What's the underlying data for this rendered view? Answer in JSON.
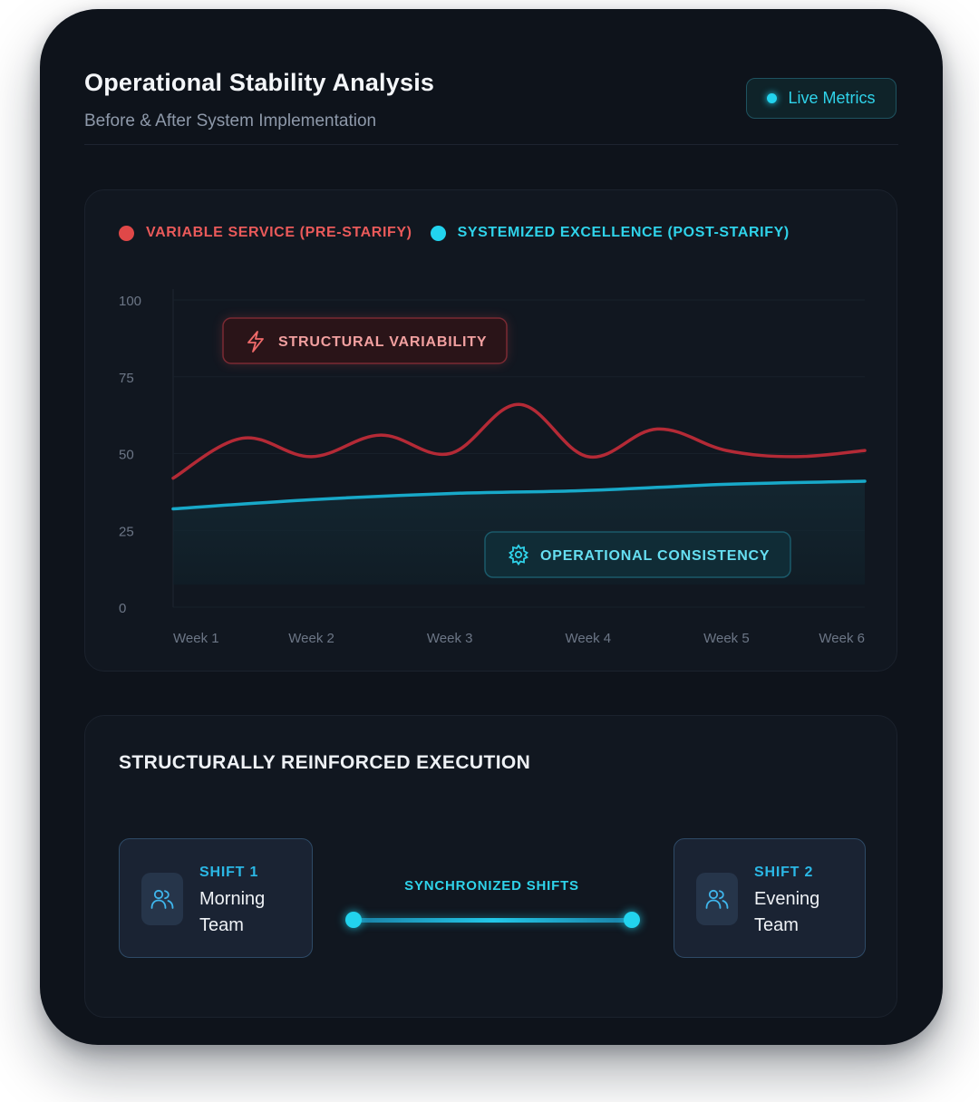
{
  "header": {
    "title": "Operational Stability Analysis",
    "subtitle": "Before & After System Implementation",
    "badge": "Live Metrics"
  },
  "colors": {
    "pre": "#e04848",
    "post": "#22d3ee",
    "background": "#0e131b"
  },
  "chart_data": {
    "type": "line",
    "categories": [
      "Week 1",
      "Week 2",
      "Week 3",
      "Week 4",
      "Week 5",
      "Week 6"
    ],
    "ylim": [
      0,
      100
    ],
    "yticks": [
      "0",
      "25",
      "50",
      "75",
      "100"
    ],
    "grid": true,
    "legend_position": "top-left",
    "series": [
      {
        "name": "VARIABLE SERVICE (PRE-STARIFY)",
        "x": [
          1,
          1.5,
          2,
          2.5,
          3,
          3.5,
          4,
          4.5,
          5,
          5.5,
          6
        ],
        "values": [
          42,
          55,
          49,
          56,
          50,
          66,
          49,
          58,
          51,
          49,
          51
        ]
      },
      {
        "name": "SYSTEMIZED EXCELLENCE (POST-STARIFY)",
        "x": [
          1,
          2,
          3,
          4,
          5,
          6
        ],
        "values": [
          32,
          35,
          37,
          38,
          40,
          41
        ]
      }
    ],
    "annotations": {
      "variability": "STRUCTURAL VARIABILITY",
      "consistency": "OPERATIONAL CONSISTENCY"
    }
  },
  "execution": {
    "title": "STRUCTURALLY REINFORCED EXECUTION",
    "sync_label": "SYNCHRONIZED SHIFTS",
    "shift1": {
      "label": "SHIFT 1",
      "name": "Morning Team"
    },
    "shift2": {
      "label": "SHIFT 2",
      "name": "Evening Team"
    }
  }
}
